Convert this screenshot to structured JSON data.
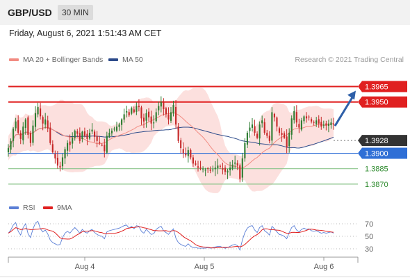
{
  "header": {
    "symbol": "GBP/USD",
    "timeframe": "30 MIN"
  },
  "timestamp": "Friday, August 6, 2021 1:51:43 AM CET",
  "legend": {
    "items": [
      {
        "label": "MA 20 + Bollinger Bands",
        "color": "#f28b82"
      },
      {
        "label": "MA 50",
        "color": "#2c4a8a"
      }
    ],
    "copyright": "Research © 2021 Trading Central"
  },
  "rsi_legend": {
    "items": [
      {
        "label": "RSI",
        "color": "#5b7fd6"
      },
      {
        "label": "9MA",
        "color": "#e02020"
      }
    ]
  },
  "chart_data": [
    {
      "type": "candlestick",
      "y_range": [
        1.3855,
        1.3985
      ],
      "x_ticks": [
        "Aug 4",
        "Aug 5",
        "Aug 6"
      ],
      "levels": [
        {
          "value": "1.3965",
          "style": "resistance",
          "color": "#e02020",
          "label_color": "#ffffff",
          "bg": "#e02020"
        },
        {
          "value": "1.3950",
          "style": "resistance",
          "color": "#e02020",
          "label_color": "#ffffff",
          "bg": "#e02020"
        },
        {
          "value": "1.3928",
          "style": "current",
          "color": "#555555",
          "label_color": "#ffffff",
          "bg": "#333333"
        },
        {
          "value": "1.3900",
          "style": "pivot",
          "color": "#2f6fd6",
          "label_color": "#ffffff",
          "bg": "#2f6fd6"
        },
        {
          "value": "1.3885",
          "style": "support",
          "color": "#8bc48b",
          "label_color": "#2e8b2e",
          "bg": "none"
        },
        {
          "value": "1.3870",
          "style": "support",
          "color": "#8bc48b",
          "label_color": "#2e8b2e",
          "bg": "none"
        }
      ],
      "target_arrow": {
        "from": 1.3928,
        "to": 1.3965
      },
      "candle_color_up": "#2e7d32",
      "candle_color_down": "#c62828",
      "bands_color": "#fbd5d3",
      "ma20_color": "#f28b82",
      "ma50_color": "#2c4a8a",
      "closes": [
        1.3905,
        1.3912,
        1.3924,
        1.3931,
        1.392,
        1.3914,
        1.3926,
        1.3933,
        1.3918,
        1.391,
        1.3927,
        1.3939,
        1.3945,
        1.3936,
        1.3929,
        1.3933,
        1.3924,
        1.391,
        1.3901,
        1.3895,
        1.3888,
        1.3886,
        1.3896,
        1.3904,
        1.391,
        1.3908,
        1.3915,
        1.3922,
        1.3919,
        1.3912,
        1.3921,
        1.3917,
        1.3914,
        1.392,
        1.3923,
        1.3916,
        1.3912,
        1.391,
        1.3908,
        1.3902,
        1.3917,
        1.392,
        1.3922,
        1.3924,
        1.3926,
        1.3928,
        1.3933,
        1.3938,
        1.3941,
        1.3937,
        1.3944,
        1.394,
        1.3946,
        1.3945,
        1.3934,
        1.3931,
        1.3939,
        1.3935,
        1.3929,
        1.393,
        1.394,
        1.3946,
        1.395,
        1.3943,
        1.3938,
        1.3933,
        1.394,
        1.3947,
        1.3928,
        1.3912,
        1.3905,
        1.39,
        1.3898,
        1.3903,
        1.3896,
        1.389,
        1.3889,
        1.3886,
        1.3885,
        1.3885,
        1.3884,
        1.3885,
        1.3883,
        1.3884,
        1.3886,
        1.3888,
        1.3887,
        1.3884,
        1.3882,
        1.3883,
        1.3886,
        1.3889,
        1.3891,
        1.3888,
        1.3875,
        1.3895,
        1.391,
        1.392,
        1.3925,
        1.3928,
        1.392,
        1.3915,
        1.3928,
        1.3932,
        1.392,
        1.3917,
        1.3912,
        1.394,
        1.3935,
        1.3926,
        1.392,
        1.3918,
        1.3915,
        1.3906,
        1.392,
        1.3934,
        1.3941,
        1.393,
        1.3925,
        1.3932,
        1.3936,
        1.3934,
        1.3935,
        1.3931,
        1.393,
        1.3932,
        1.3929,
        1.3926,
        1.3928,
        1.3927,
        1.3929,
        1.393,
        1.3928
      ]
    },
    {
      "type": "line",
      "name": "RSI",
      "y_range": [
        20,
        80
      ],
      "y_ticks": [
        "70",
        "50",
        "30"
      ],
      "x_ticks": [
        "Aug 4",
        "Aug 5",
        "Aug 6"
      ],
      "series": [
        {
          "name": "RSI",
          "color": "#5b7fd6"
        },
        {
          "name": "9MA",
          "color": "#e02020"
        }
      ],
      "rsi": [
        55,
        60,
        68,
        72,
        58,
        52,
        64,
        70,
        54,
        48,
        62,
        71,
        74,
        62,
        57,
        60,
        54,
        44,
        40,
        38,
        36,
        37,
        48,
        55,
        58,
        55,
        60,
        64,
        60,
        55,
        61,
        57,
        55,
        59,
        61,
        56,
        53,
        51,
        50,
        46,
        57,
        59,
        60,
        61,
        62,
        63,
        65,
        67,
        68,
        63,
        66,
        62,
        67,
        66,
        58,
        55,
        61,
        57,
        53,
        54,
        61,
        64,
        66,
        59,
        56,
        53,
        58,
        62,
        47,
        40,
        37,
        35,
        34,
        38,
        34,
        32,
        32,
        31,
        31,
        31,
        31,
        32,
        31,
        32,
        33,
        34,
        34,
        32,
        31,
        32,
        34,
        36,
        37,
        35,
        28,
        44,
        56,
        63,
        66,
        67,
        60,
        56,
        64,
        67,
        59,
        56,
        52,
        66,
        62,
        57,
        53,
        52,
        50,
        46,
        56,
        64,
        67,
        60,
        57,
        61,
        63,
        61,
        62,
        59,
        58,
        59,
        57,
        55,
        56,
        55,
        56,
        57,
        55
      ]
    }
  ]
}
